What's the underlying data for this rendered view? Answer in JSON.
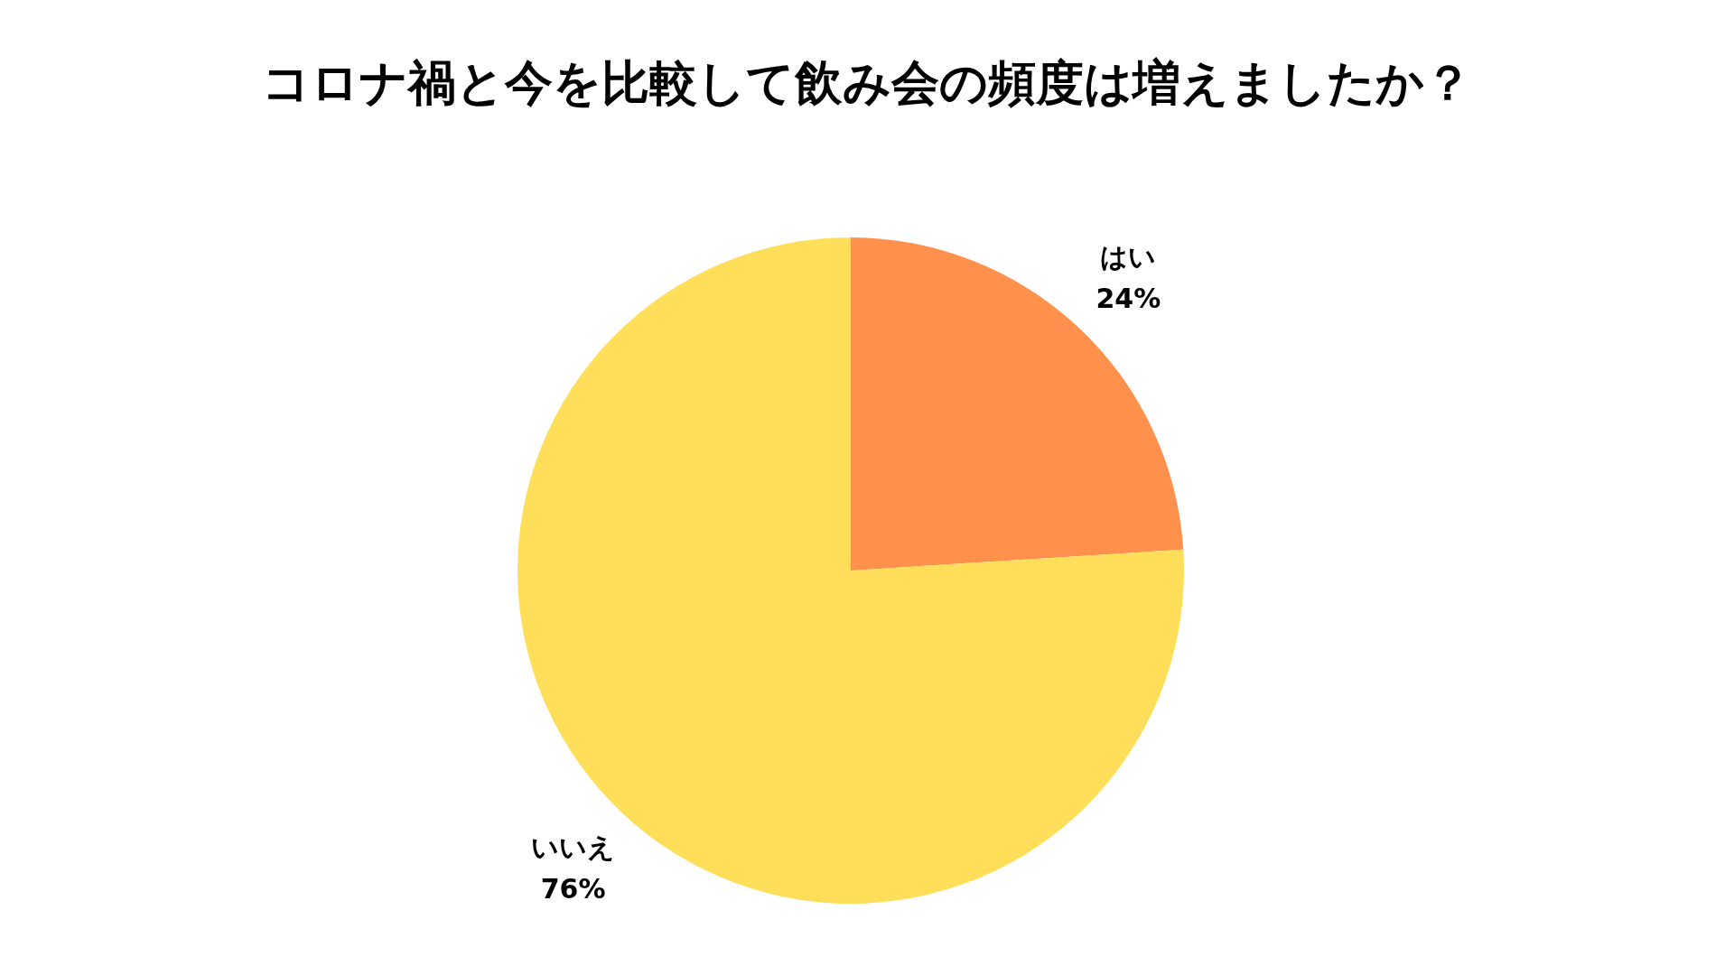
{
  "chart_data": {
    "type": "pie",
    "title": "コロナ禍と今を比較して飲み会の頻度は増えましたか？",
    "categories": [
      "はい",
      "いいえ"
    ],
    "values": [
      24,
      76
    ],
    "colors": [
      "#ff914d",
      "#ffde59"
    ],
    "value_labels": [
      "24%",
      "76%"
    ]
  }
}
